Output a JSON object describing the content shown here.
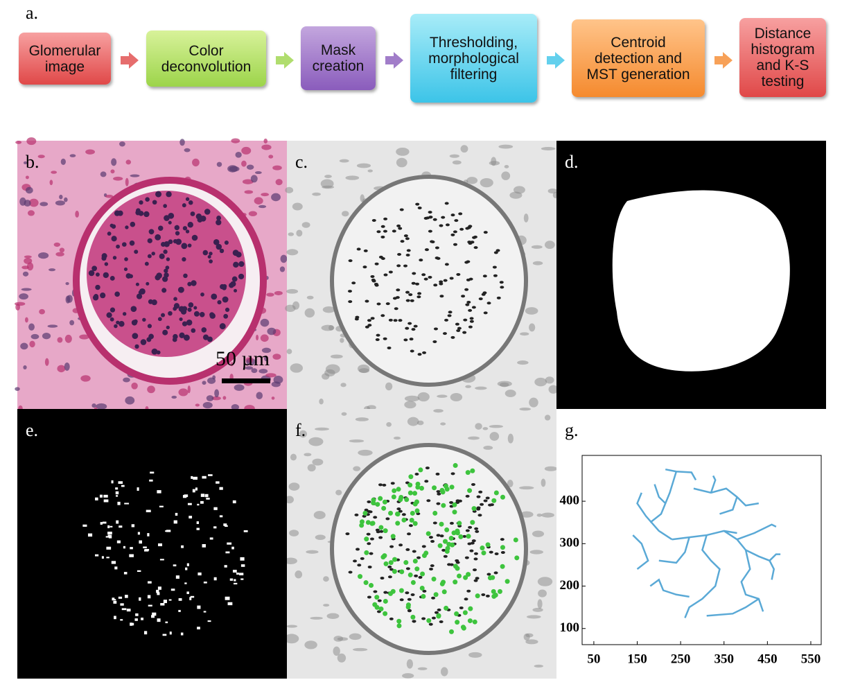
{
  "figure": {
    "panel_labels": {
      "a": "a.",
      "b": "b.",
      "c": "c.",
      "d": "d.",
      "e": "e.",
      "f": "f.",
      "g": "g."
    },
    "steps": [
      {
        "lines": [
          "Glomerular",
          "image"
        ]
      },
      {
        "lines": [
          "Color",
          "deconvolution"
        ]
      },
      {
        "lines": [
          "Mask",
          "creation"
        ]
      },
      {
        "lines": [
          "Thresholding,",
          "morphological",
          "filtering"
        ]
      },
      {
        "lines": [
          "Centroid",
          "detection and",
          "MST generation"
        ]
      },
      {
        "lines": [
          "Distance",
          "histogram",
          "and K-S",
          "testing"
        ]
      }
    ],
    "scale_bar": "50 µm"
  },
  "chart_data": {
    "type": "line",
    "xlim": [
      23,
      574
    ],
    "ylim": [
      62,
      508
    ],
    "xticks": [
      50,
      150,
      250,
      350,
      450,
      550
    ],
    "yticks": [
      100,
      200,
      300,
      400
    ],
    "series": [
      {
        "color": "#5aa9d6",
        "x": [
          215,
          240,
          275,
          285,
          null,
          240,
          225,
          215,
          null,
          190,
          200,
          215,
          205,
          180,
          null,
          160,
          150,
          170,
          200,
          230,
          null,
          140,
          160,
          175,
          150,
          null,
          230,
          270,
          310,
          350,
          380,
          null,
          270,
          260,
          240,
          200,
          null,
          180,
          200,
          210,
          240,
          270,
          null,
          310,
          300,
          320,
          340,
          330,
          300,
          270,
          260,
          null,
          350,
          380,
          420,
          460,
          470,
          null,
          380,
          400,
          430,
          455,
          465,
          460,
          null,
          455,
          470,
          480,
          null,
          400,
          410,
          390,
          400,
          430,
          440,
          null,
          310,
          370,
          400,
          430,
          null,
          280,
          320,
          355,
          380,
          400,
          430,
          null,
          320,
          330,
          325,
          null,
          380,
          370,
          340
        ],
        "values": [
          475,
          470,
          468,
          450,
          null,
          470,
          420,
          395,
          null,
          440,
          410,
          395,
          370,
          350,
          null,
          420,
          395,
          365,
          330,
          310,
          null,
          320,
          300,
          260,
          240,
          null,
          310,
          315,
          320,
          330,
          325,
          null,
          315,
          280,
          255,
          260,
          null,
          200,
          215,
          190,
          180,
          175,
          null,
          320,
          285,
          260,
          240,
          200,
          170,
          150,
          125,
          null,
          330,
          310,
          325,
          345,
          340,
          null,
          310,
          285,
          270,
          260,
          240,
          215,
          null,
          260,
          275,
          275,
          null,
          285,
          240,
          210,
          180,
          170,
          140,
          null,
          130,
          135,
          150,
          170,
          null,
          430,
          420,
          430,
          410,
          390,
          395,
          null,
          420,
          450,
          460,
          null,
          410,
          380,
          370
        ]
      }
    ]
  }
}
